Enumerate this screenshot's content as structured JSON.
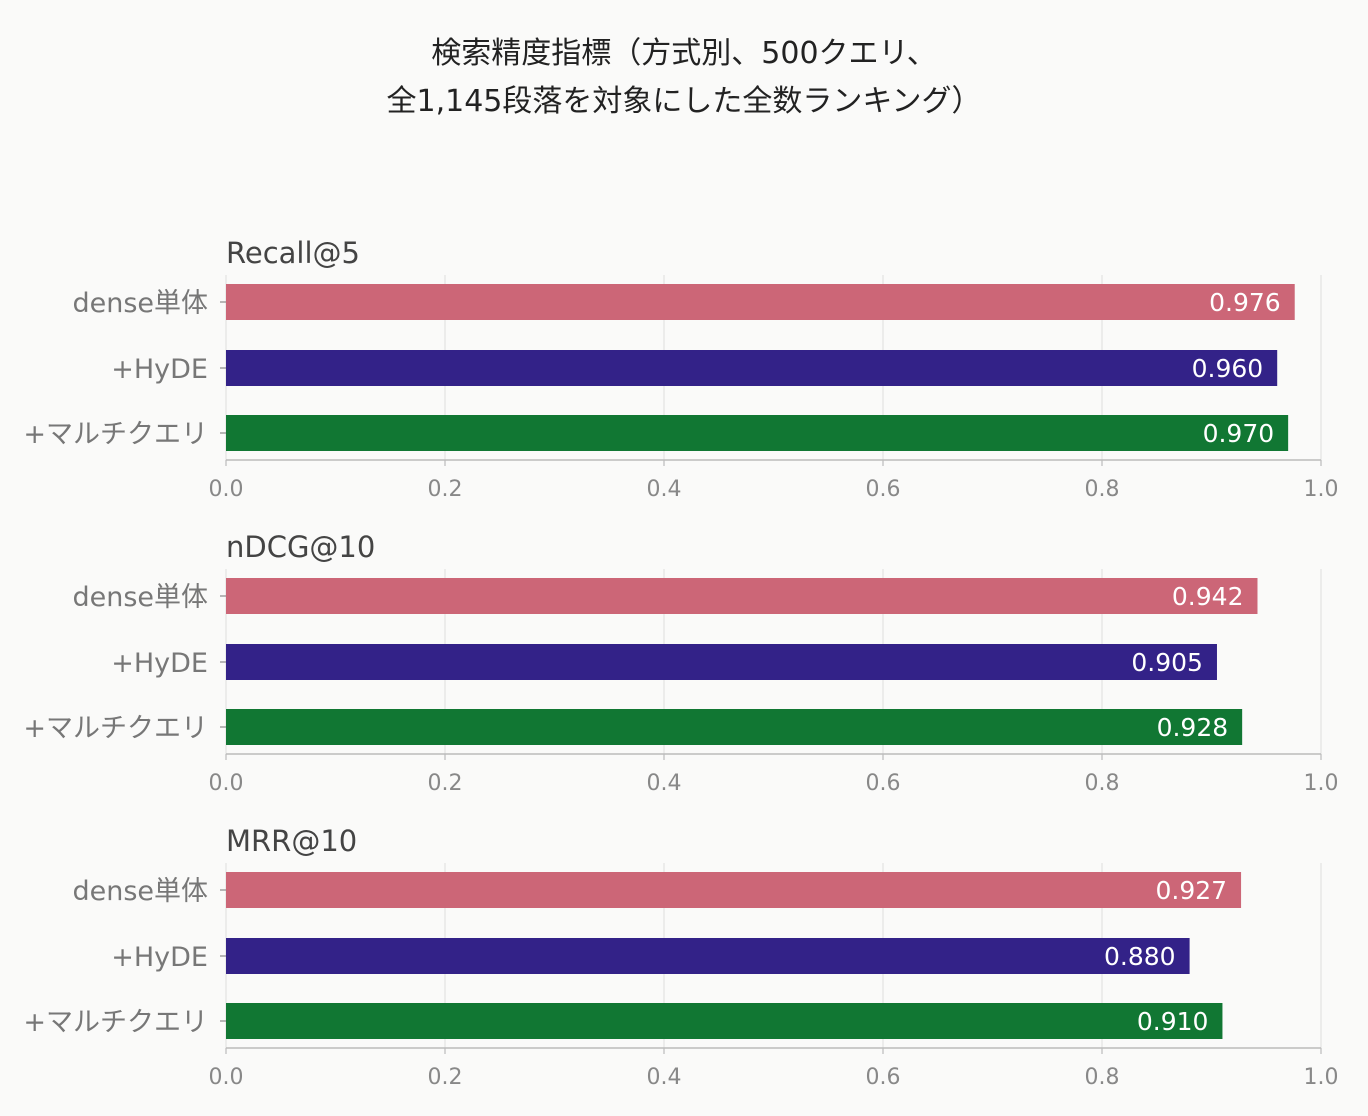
{
  "title_lines": [
    "検索精度指標（方式別、500クエリ、",
    "全1,145段落を対象にした全数ランキング）"
  ],
  "colors": {
    "dense": "#cc6677",
    "hyde": "#332288",
    "multi": "#117733",
    "grid": "#dddddd",
    "axis": "#bbbbbb",
    "tick_text": "#888888",
    "category_text": "#777777",
    "panel_title": "#444444",
    "bar_label": "#ffffff"
  },
  "chart_data": [
    {
      "type": "bar",
      "orientation": "horizontal",
      "title": "Recall@5",
      "categories": [
        "dense単体",
        "+HyDE",
        "+マルチクエリ"
      ],
      "values": [
        0.976,
        0.96,
        0.97
      ],
      "value_labels": [
        "0.976",
        "0.960",
        "0.970"
      ],
      "xlim": [
        0.0,
        1.0
      ],
      "xticks": [
        "0.0",
        "0.2",
        "0.4",
        "0.6",
        "0.8",
        "1.0"
      ],
      "grid": true
    },
    {
      "type": "bar",
      "orientation": "horizontal",
      "title": "nDCG@10",
      "categories": [
        "dense単体",
        "+HyDE",
        "+マルチクエリ"
      ],
      "values": [
        0.942,
        0.905,
        0.928
      ],
      "value_labels": [
        "0.942",
        "0.905",
        "0.928"
      ],
      "xlim": [
        0.0,
        1.0
      ],
      "xticks": [
        "0.0",
        "0.2",
        "0.4",
        "0.6",
        "0.8",
        "1.0"
      ],
      "grid": true
    },
    {
      "type": "bar",
      "orientation": "horizontal",
      "title": "MRR@10",
      "categories": [
        "dense単体",
        "+HyDE",
        "+マルチクエリ"
      ],
      "values": [
        0.927,
        0.88,
        0.91
      ],
      "value_labels": [
        "0.927",
        "0.880",
        "0.910"
      ],
      "xlim": [
        0.0,
        1.0
      ],
      "xticks": [
        "0.0",
        "0.2",
        "0.4",
        "0.6",
        "0.8",
        "1.0"
      ],
      "grid": true
    }
  ]
}
